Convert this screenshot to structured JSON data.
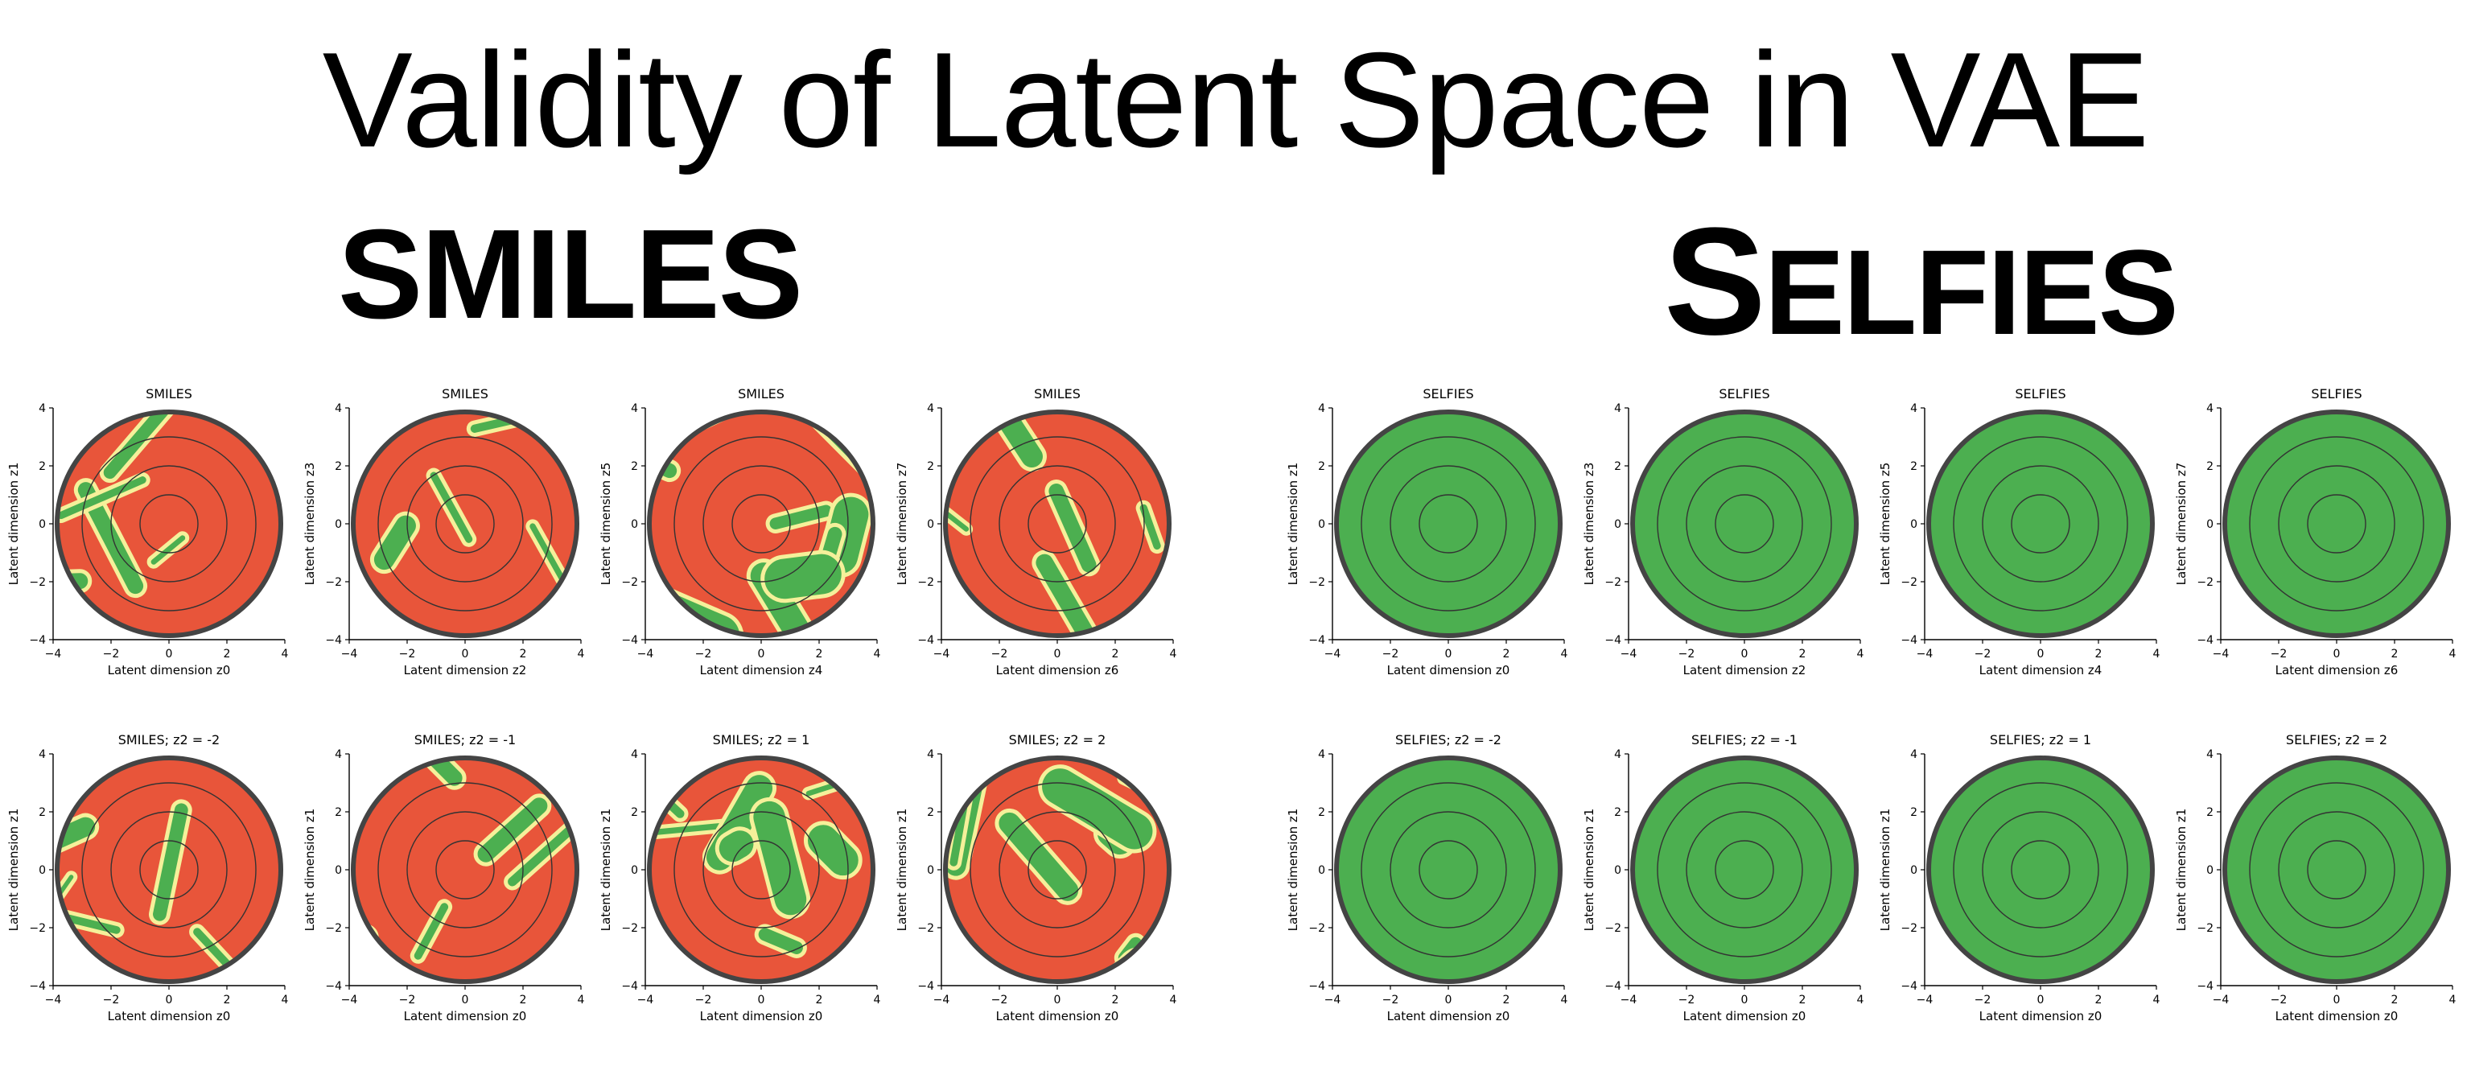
{
  "title": "Validity of Latent Space in VAE",
  "headings": {
    "smiles": "SMILES",
    "selfies_first": "S",
    "selfies_rest": "elfies"
  },
  "colors": {
    "valid": "#4caf50",
    "invalid": "#e8553a",
    "boundary": "#f5f09a",
    "rim": "#444444"
  },
  "ticks": [
    "−4",
    "−2",
    "0",
    "2",
    "4"
  ],
  "chart_data": [
    {
      "type": "heatmap",
      "title": "SMILES",
      "xlabel": "Latent dimension z0",
      "ylabel": "Latent dimension z1",
      "xlim": [
        -4,
        4
      ],
      "ylim": [
        -4,
        4
      ],
      "dominant": "invalid"
    },
    {
      "type": "heatmap",
      "title": "SMILES",
      "xlabel": "Latent dimension z2",
      "ylabel": "Latent dimension z3",
      "xlim": [
        -4,
        4
      ],
      "ylim": [
        -4,
        4
      ],
      "dominant": "invalid"
    },
    {
      "type": "heatmap",
      "title": "SMILES",
      "xlabel": "Latent dimension z4",
      "ylabel": "Latent dimension z5",
      "xlim": [
        -4,
        4
      ],
      "ylim": [
        -4,
        4
      ],
      "dominant": "mixed"
    },
    {
      "type": "heatmap",
      "title": "SMILES",
      "xlabel": "Latent dimension z6",
      "ylabel": "Latent dimension z7",
      "xlim": [
        -4,
        4
      ],
      "ylim": [
        -4,
        4
      ],
      "dominant": "invalid"
    },
    {
      "type": "heatmap",
      "title": "SELFIES",
      "xlabel": "Latent dimension z0",
      "ylabel": "Latent dimension z1",
      "xlim": [
        -4,
        4
      ],
      "ylim": [
        -4,
        4
      ],
      "dominant": "valid"
    },
    {
      "type": "heatmap",
      "title": "SELFIES",
      "xlabel": "Latent dimension z2",
      "ylabel": "Latent dimension z3",
      "xlim": [
        -4,
        4
      ],
      "ylim": [
        -4,
        4
      ],
      "dominant": "valid"
    },
    {
      "type": "heatmap",
      "title": "SELFIES",
      "xlabel": "Latent dimension z4",
      "ylabel": "Latent dimension z5",
      "xlim": [
        -4,
        4
      ],
      "ylim": [
        -4,
        4
      ],
      "dominant": "valid"
    },
    {
      "type": "heatmap",
      "title": "SELFIES",
      "xlabel": "Latent dimension z6",
      "ylabel": "Latent dimension z7",
      "xlim": [
        -4,
        4
      ],
      "ylim": [
        -4,
        4
      ],
      "dominant": "valid"
    },
    {
      "type": "heatmap",
      "title": "SMILES; z2 = -2",
      "xlabel": "Latent dimension z0",
      "ylabel": "Latent dimension z1",
      "xlim": [
        -4,
        4
      ],
      "ylim": [
        -4,
        4
      ],
      "dominant": "invalid"
    },
    {
      "type": "heatmap",
      "title": "SMILES; z2 = -1",
      "xlabel": "Latent dimension z0",
      "ylabel": "Latent dimension z1",
      "xlim": [
        -4,
        4
      ],
      "ylim": [
        -4,
        4
      ],
      "dominant": "invalid"
    },
    {
      "type": "heatmap",
      "title": "SMILES; z2 = 1",
      "xlabel": "Latent dimension z0",
      "ylabel": "Latent dimension z1",
      "xlim": [
        -4,
        4
      ],
      "ylim": [
        -4,
        4
      ],
      "dominant": "mixed"
    },
    {
      "type": "heatmap",
      "title": "SMILES; z2 = 2",
      "xlabel": "Latent dimension z0",
      "ylabel": "Latent dimension z1",
      "xlim": [
        -4,
        4
      ],
      "ylim": [
        -4,
        4
      ],
      "dominant": "mixed"
    },
    {
      "type": "heatmap",
      "title": "SELFIES; z2 = -2",
      "xlabel": "Latent dimension z0",
      "ylabel": "Latent dimension z1",
      "xlim": [
        -4,
        4
      ],
      "ylim": [
        -4,
        4
      ],
      "dominant": "valid"
    },
    {
      "type": "heatmap",
      "title": "SELFIES; z2 = -1",
      "xlabel": "Latent dimension z0",
      "ylabel": "Latent dimension z1",
      "xlim": [
        -4,
        4
      ],
      "ylim": [
        -4,
        4
      ],
      "dominant": "valid"
    },
    {
      "type": "heatmap",
      "title": "SELFIES; z2 = 1",
      "xlabel": "Latent dimension z0",
      "ylabel": "Latent dimension z1",
      "xlim": [
        -4,
        4
      ],
      "ylim": [
        -4,
        4
      ],
      "dominant": "valid"
    },
    {
      "type": "heatmap",
      "title": "SELFIES; z2 = 2",
      "xlabel": "Latent dimension z0",
      "ylabel": "Latent dimension z1",
      "xlim": [
        -4,
        4
      ],
      "ylim": [
        -4,
        4
      ],
      "dominant": "valid"
    }
  ]
}
